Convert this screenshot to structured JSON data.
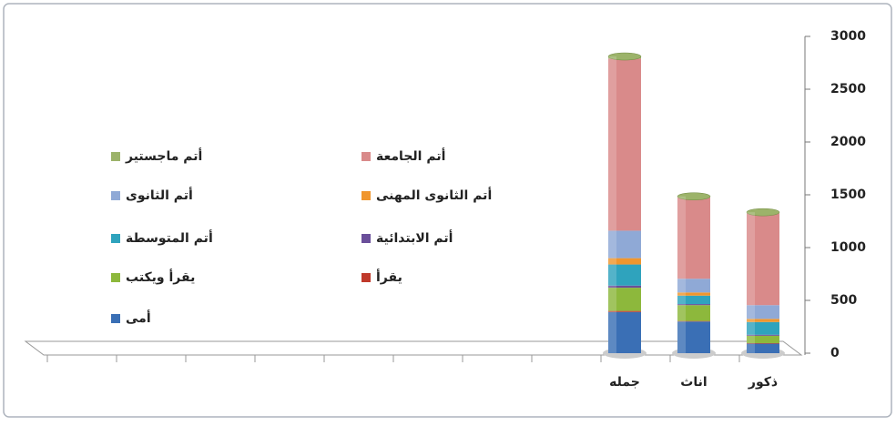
{
  "chart_data": {
    "type": "bar",
    "stacked": true,
    "categories": [
      null,
      null,
      null,
      null,
      null,
      null,
      null,
      null,
      "جمله",
      "اناث",
      "ذكور"
    ],
    "series": [
      {
        "name": "أمى",
        "color": "#3a6fb5",
        "values": [
          null,
          null,
          null,
          null,
          null,
          null,
          null,
          null,
          390,
          300,
          90
        ]
      },
      {
        "name": "يقرأ",
        "color": "#c0392b",
        "values": [
          null,
          null,
          null,
          null,
          null,
          null,
          null,
          null,
          10,
          5,
          5
        ]
      },
      {
        "name": "يقرأ ويكتب",
        "color": "#8db83c",
        "values": [
          null,
          null,
          null,
          null,
          null,
          null,
          null,
          null,
          220,
          150,
          70
        ]
      },
      {
        "name": "أتم الابتدائية",
        "color": "#6a4f9a",
        "values": [
          null,
          null,
          null,
          null,
          null,
          null,
          null,
          null,
          20,
          10,
          10
        ]
      },
      {
        "name": "أتم المتوسطة",
        "color": "#2fa3bd",
        "values": [
          null,
          null,
          null,
          null,
          null,
          null,
          null,
          null,
          200,
          80,
          120
        ]
      },
      {
        "name": "أتم الثانوى المهنى",
        "color": "#f0962e",
        "values": [
          null,
          null,
          null,
          null,
          null,
          null,
          null,
          null,
          60,
          30,
          30
        ]
      },
      {
        "name": "أتم الثانوى",
        "color": "#8fa9d6",
        "values": [
          null,
          null,
          null,
          null,
          null,
          null,
          null,
          null,
          260,
          130,
          130
        ]
      },
      {
        "name": "أتم الجامعة",
        "color": "#d98a8a",
        "values": [
          null,
          null,
          null,
          null,
          null,
          null,
          null,
          null,
          1630,
          770,
          870
        ]
      },
      {
        "name": "أتم ماجستير",
        "color": "#9cb36a",
        "values": [
          null,
          null,
          null,
          null,
          null,
          null,
          null,
          null,
          20,
          10,
          10
        ]
      }
    ],
    "ylim": [
      0,
      3000
    ],
    "yticks": [
      0,
      500,
      1000,
      1500,
      2000,
      2500,
      3000
    ]
  }
}
